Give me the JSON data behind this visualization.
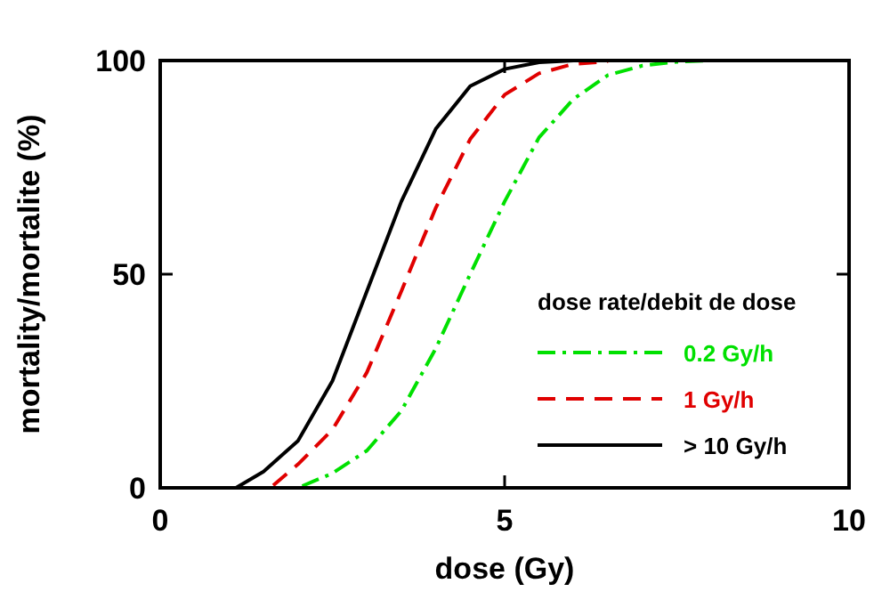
{
  "chart_data": {
    "type": "line",
    "xlabel": "dose (Gy)",
    "ylabel": "mortality/mortalite (%)",
    "legend_title": "dose rate/debit de dose",
    "legend": "bottom right",
    "grid": false,
    "xlim": [
      0,
      10
    ],
    "ylim": [
      0,
      100
    ],
    "xticks": [
      0,
      5,
      10
    ],
    "yticks": [
      0,
      50,
      100
    ],
    "series": [
      {
        "name": "0.2 Gy/h",
        "color": "#00e000",
        "line_style": "dashdot",
        "x": [
          0,
          2,
          2.5,
          3,
          3.5,
          4,
          4.5,
          5,
          5.5,
          6,
          6.5,
          7,
          7.5,
          8
        ],
        "values": [
          0,
          0,
          3.4,
          8.7,
          18,
          32.6,
          50,
          67,
          82,
          91,
          96.6,
          98.8,
          99.7,
          100
        ]
      },
      {
        "name": "1 Gy/h",
        "color": "#e00000",
        "line_style": "dashed",
        "x": [
          0,
          1.6,
          2,
          2.5,
          3,
          3.5,
          4,
          4.5,
          5,
          5.5,
          6,
          6.5
        ],
        "values": [
          0,
          0,
          5.5,
          13.6,
          27,
          46,
          65.5,
          81.6,
          92,
          97,
          99.2,
          99.8
        ]
      },
      {
        "name": "> 10 Gy/h",
        "color": "#000000",
        "line_style": "solid",
        "x": [
          0,
          1.1,
          1.5,
          2,
          2.5,
          3,
          3.5,
          4,
          4.5,
          5,
          5.5,
          6,
          7,
          10
        ],
        "values": [
          0,
          0,
          3.8,
          11,
          25,
          46,
          67,
          84,
          94,
          98,
          99.6,
          100,
          100,
          100
        ]
      }
    ]
  }
}
